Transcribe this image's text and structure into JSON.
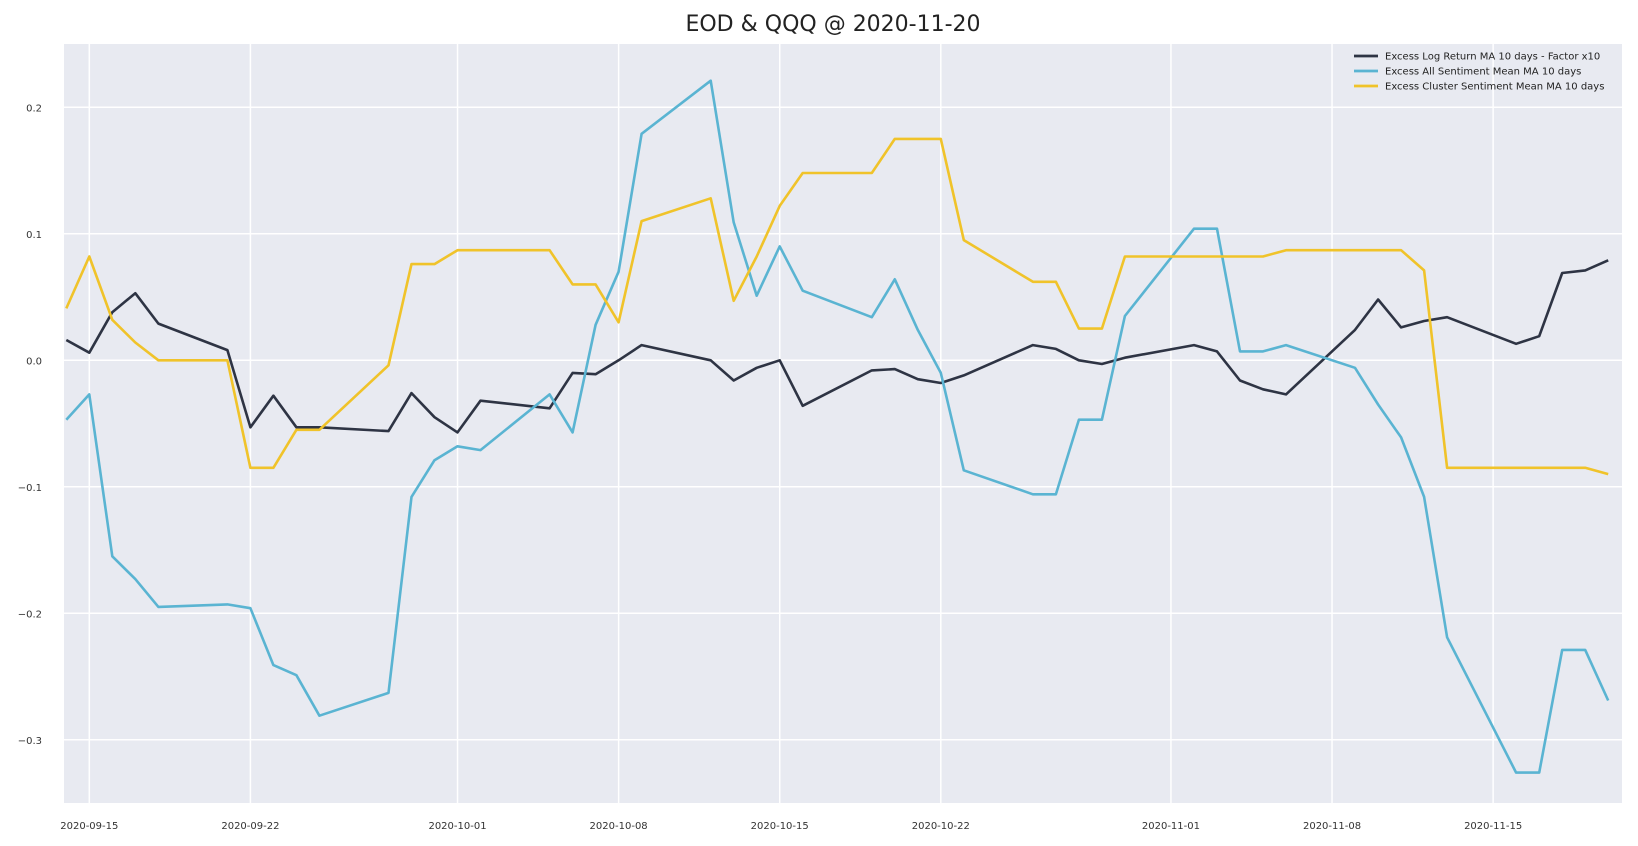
{
  "chart_data": {
    "type": "line",
    "title": "EOD & QQQ @ 2020-11-20",
    "xlabel": "",
    "ylabel": "",
    "grid": true,
    "legend_position": "top-right",
    "x_type": "date",
    "xlim": [
      "2020-09-14",
      "2020-11-21"
    ],
    "ylim": [
      -0.35,
      0.25
    ],
    "x_ticks": [
      "2020-09-15",
      "2020-09-22",
      "2020-10-01",
      "2020-10-08",
      "2020-10-15",
      "2020-10-22",
      "2020-11-01",
      "2020-11-08",
      "2020-11-15"
    ],
    "y_ticks": [
      -0.3,
      -0.2,
      -0.1,
      0.0,
      0.1,
      0.2
    ],
    "y_tick_labels": [
      "−0.3",
      "−0.2",
      "−0.1",
      "0.0",
      "0.1",
      "0.2"
    ],
    "colors": {
      "background": "#e8eaf1",
      "grid": "#ffffff"
    },
    "series": [
      {
        "name": "Excess Log Return MA 10 days - Factor x10",
        "color": "#2e3444",
        "points": [
          [
            "2020-09-14",
            0.016
          ],
          [
            "2020-09-15",
            0.006
          ],
          [
            "2020-09-16",
            0.038
          ],
          [
            "2020-09-17",
            0.053
          ],
          [
            "2020-09-18",
            0.029
          ],
          [
            "2020-09-21",
            0.008
          ],
          [
            "2020-09-22",
            -0.053
          ],
          [
            "2020-09-23",
            -0.028
          ],
          [
            "2020-09-24",
            -0.053
          ],
          [
            "2020-09-25",
            -0.053
          ],
          [
            "2020-09-28",
            -0.056
          ],
          [
            "2020-09-29",
            -0.026
          ],
          [
            "2020-09-30",
            -0.045
          ],
          [
            "2020-10-01",
            -0.057
          ],
          [
            "2020-10-02",
            -0.032
          ],
          [
            "2020-10-05",
            -0.038
          ],
          [
            "2020-10-06",
            -0.01
          ],
          [
            "2020-10-07",
            -0.011
          ],
          [
            "2020-10-08",
            0.0
          ],
          [
            "2020-10-09",
            0.012
          ],
          [
            "2020-10-12",
            0.0
          ],
          [
            "2020-10-13",
            -0.016
          ],
          [
            "2020-10-14",
            -0.006
          ],
          [
            "2020-10-15",
            0.0
          ],
          [
            "2020-10-16",
            -0.036
          ],
          [
            "2020-10-19",
            -0.008
          ],
          [
            "2020-10-20",
            -0.007
          ],
          [
            "2020-10-21",
            -0.015
          ],
          [
            "2020-10-22",
            -0.018
          ],
          [
            "2020-10-23",
            -0.012
          ],
          [
            "2020-10-26",
            0.012
          ],
          [
            "2020-10-27",
            0.009
          ],
          [
            "2020-10-28",
            0.0
          ],
          [
            "2020-10-29",
            -0.003
          ],
          [
            "2020-10-30",
            0.002
          ],
          [
            "2020-11-02",
            0.012
          ],
          [
            "2020-11-03",
            0.007
          ],
          [
            "2020-11-04",
            -0.016
          ],
          [
            "2020-11-05",
            -0.023
          ],
          [
            "2020-11-06",
            -0.027
          ],
          [
            "2020-11-09",
            0.024
          ],
          [
            "2020-11-10",
            0.048
          ],
          [
            "2020-11-11",
            0.026
          ],
          [
            "2020-11-12",
            0.031
          ],
          [
            "2020-11-13",
            0.034
          ],
          [
            "2020-11-16",
            0.013
          ],
          [
            "2020-11-17",
            0.019
          ],
          [
            "2020-11-18",
            0.069
          ],
          [
            "2020-11-19",
            0.071
          ],
          [
            "2020-11-20",
            0.079
          ]
        ]
      },
      {
        "name": "Excess All Sentiment Mean MA 10 days",
        "color": "#5ab4d2",
        "points": [
          [
            "2020-09-14",
            -0.047
          ],
          [
            "2020-09-15",
            -0.027
          ],
          [
            "2020-09-16",
            -0.155
          ],
          [
            "2020-09-17",
            -0.173
          ],
          [
            "2020-09-18",
            -0.195
          ],
          [
            "2020-09-21",
            -0.193
          ],
          [
            "2020-09-22",
            -0.196
          ],
          [
            "2020-09-23",
            -0.241
          ],
          [
            "2020-09-24",
            -0.249
          ],
          [
            "2020-09-25",
            -0.281
          ],
          [
            "2020-09-28",
            -0.263
          ],
          [
            "2020-09-29",
            -0.108
          ],
          [
            "2020-09-30",
            -0.079
          ],
          [
            "2020-10-01",
            -0.068
          ],
          [
            "2020-10-02",
            -0.071
          ],
          [
            "2020-10-05",
            -0.027
          ],
          [
            "2020-10-06",
            -0.057
          ],
          [
            "2020-10-07",
            0.028
          ],
          [
            "2020-10-08",
            0.07
          ],
          [
            "2020-10-09",
            0.179
          ],
          [
            "2020-10-12",
            0.221
          ],
          [
            "2020-10-13",
            0.109
          ],
          [
            "2020-10-14",
            0.051
          ],
          [
            "2020-10-15",
            0.09
          ],
          [
            "2020-10-16",
            0.055
          ],
          [
            "2020-10-19",
            0.034
          ],
          [
            "2020-10-20",
            0.064
          ],
          [
            "2020-10-21",
            0.024
          ],
          [
            "2020-10-22",
            -0.01
          ],
          [
            "2020-10-23",
            -0.087
          ],
          [
            "2020-10-26",
            -0.106
          ],
          [
            "2020-10-27",
            -0.106
          ],
          [
            "2020-10-28",
            -0.047
          ],
          [
            "2020-10-29",
            -0.047
          ],
          [
            "2020-10-30",
            0.035
          ],
          [
            "2020-11-02",
            0.104
          ],
          [
            "2020-11-03",
            0.104
          ],
          [
            "2020-11-04",
            0.007
          ],
          [
            "2020-11-05",
            0.007
          ],
          [
            "2020-11-06",
            0.012
          ],
          [
            "2020-11-09",
            -0.006
          ],
          [
            "2020-11-10",
            -0.035
          ],
          [
            "2020-11-11",
            -0.061
          ],
          [
            "2020-11-12",
            -0.108
          ],
          [
            "2020-11-13",
            -0.219
          ],
          [
            "2020-11-16",
            -0.326
          ],
          [
            "2020-11-17",
            -0.326
          ],
          [
            "2020-11-18",
            -0.229
          ],
          [
            "2020-11-19",
            -0.229
          ],
          [
            "2020-11-20",
            -0.269
          ]
        ]
      },
      {
        "name": "Excess Cluster Sentiment Mean MA 10 days",
        "color": "#f0c32a",
        "points": [
          [
            "2020-09-14",
            0.041
          ],
          [
            "2020-09-15",
            0.082
          ],
          [
            "2020-09-16",
            0.032
          ],
          [
            "2020-09-17",
            0.014
          ],
          [
            "2020-09-18",
            0.0
          ],
          [
            "2020-09-21",
            0.0
          ],
          [
            "2020-09-22",
            -0.085
          ],
          [
            "2020-09-23",
            -0.085
          ],
          [
            "2020-09-24",
            -0.055
          ],
          [
            "2020-09-25",
            -0.055
          ],
          [
            "2020-09-28",
            -0.004
          ],
          [
            "2020-09-29",
            0.076
          ],
          [
            "2020-09-30",
            0.076
          ],
          [
            "2020-10-01",
            0.087
          ],
          [
            "2020-10-02",
            0.087
          ],
          [
            "2020-10-05",
            0.087
          ],
          [
            "2020-10-06",
            0.06
          ],
          [
            "2020-10-07",
            0.06
          ],
          [
            "2020-10-08",
            0.03
          ],
          [
            "2020-10-09",
            0.11
          ],
          [
            "2020-10-12",
            0.128
          ],
          [
            "2020-10-13",
            0.047
          ],
          [
            "2020-10-14",
            0.082
          ],
          [
            "2020-10-15",
            0.122
          ],
          [
            "2020-10-16",
            0.148
          ],
          [
            "2020-10-19",
            0.148
          ],
          [
            "2020-10-20",
            0.175
          ],
          [
            "2020-10-21",
            0.175
          ],
          [
            "2020-10-22",
            0.175
          ],
          [
            "2020-10-23",
            0.095
          ],
          [
            "2020-10-26",
            0.062
          ],
          [
            "2020-10-27",
            0.062
          ],
          [
            "2020-10-28",
            0.025
          ],
          [
            "2020-10-29",
            0.025
          ],
          [
            "2020-10-30",
            0.082
          ],
          [
            "2020-11-02",
            0.082
          ],
          [
            "2020-11-03",
            0.082
          ],
          [
            "2020-11-04",
            0.082
          ],
          [
            "2020-11-05",
            0.082
          ],
          [
            "2020-11-06",
            0.087
          ],
          [
            "2020-11-09",
            0.087
          ],
          [
            "2020-11-10",
            0.087
          ],
          [
            "2020-11-11",
            0.087
          ],
          [
            "2020-11-12",
            0.071
          ],
          [
            "2020-11-13",
            -0.085
          ],
          [
            "2020-11-16",
            -0.085
          ],
          [
            "2020-11-17",
            -0.085
          ],
          [
            "2020-11-18",
            -0.085
          ],
          [
            "2020-11-19",
            -0.085
          ],
          [
            "2020-11-20",
            -0.09
          ]
        ]
      }
    ]
  }
}
